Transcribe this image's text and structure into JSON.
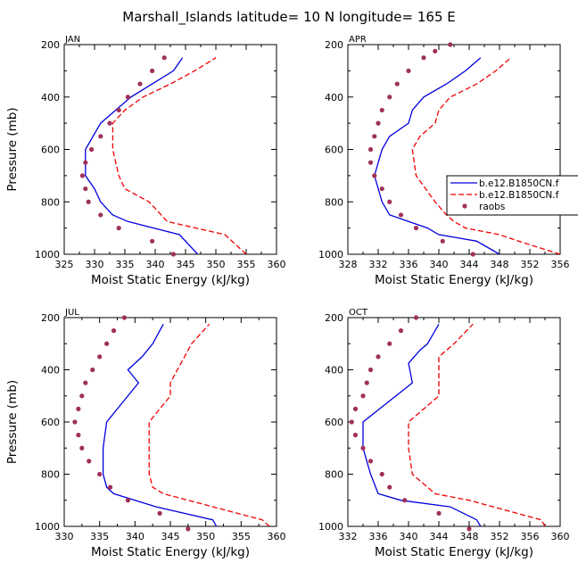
{
  "figure_title": "Marshall_Islands   latitude= 10 N longitude= 165 E",
  "colors": {
    "model1": "#0000dd",
    "model2": "#ee0000",
    "raobs": "#a0305a"
  },
  "legend": [
    "b.e12.B1850CN.f",
    "b.e12.B1850CN.f",
    "raobs"
  ],
  "chart_data": [
    {
      "type": "line",
      "panel": "JAN",
      "xlabel": "Moist Static Energy (kJ/kg)",
      "ylabel": "Pressure (mb)",
      "xlim": [
        325,
        360
      ],
      "xticks": [
        325,
        330,
        335,
        340,
        345,
        350,
        355,
        360
      ],
      "ylim": [
        1000,
        200
      ],
      "yticks": [
        200,
        400,
        600,
        800,
        1000
      ],
      "series": [
        {
          "name": "b.e12.B1850CN.f",
          "style": "solid",
          "x": [
            347.0,
            344.0,
            335.5,
            333.0,
            331.0,
            330.0,
            328.5,
            328.5,
            331.0,
            333.5,
            336.0,
            339.5,
            343.0,
            344.5
          ],
          "y": [
            1000,
            925,
            875,
            850,
            800,
            750,
            700,
            600,
            500,
            450,
            400,
            350,
            300,
            250
          ]
        },
        {
          "name": "b.e12.B1850CN.f",
          "style": "dashed",
          "x": [
            355.0,
            351.5,
            342.0,
            341.0,
            339.0,
            335.0,
            334.0,
            333.0,
            333.0,
            335.0,
            338.0,
            342.5,
            346.5,
            350.0
          ],
          "y": [
            1000,
            925,
            875,
            850,
            800,
            750,
            700,
            600,
            500,
            450,
            400,
            350,
            300,
            250
          ]
        },
        {
          "name": "raobs",
          "style": "points",
          "x": [
            343.0,
            339.5,
            334.0,
            331.0,
            329.0,
            328.5,
            328.0,
            328.5,
            329.5,
            331.0,
            332.5,
            334.0,
            335.5,
            337.5,
            339.5,
            341.5
          ],
          "y": [
            1000,
            950,
            900,
            850,
            800,
            750,
            700,
            650,
            600,
            550,
            500,
            450,
            400,
            350,
            300,
            250
          ]
        }
      ]
    },
    {
      "type": "line",
      "panel": "APR",
      "xlabel": "Moist Static Energy (kJ/kg)",
      "ylabel": "",
      "xlim": [
        328,
        356
      ],
      "xticks": [
        328,
        332,
        336,
        340,
        344,
        348,
        352,
        356
      ],
      "ylim": [
        1000,
        200
      ],
      "yticks": [
        200,
        400,
        600,
        800,
        1000
      ],
      "series": [
        {
          "name": "b.e12.B1850CN.f",
          "style": "solid",
          "x": [
            348.0,
            345.0,
            340.0,
            338.5,
            336.0,
            333.5,
            332.5,
            331.5,
            332.5,
            333.5,
            336.0,
            336.5,
            338.0,
            341.0,
            343.5,
            345.5
          ],
          "y": [
            1000,
            950,
            925,
            900,
            875,
            850,
            800,
            700,
            600,
            550,
            500,
            450,
            400,
            350,
            300,
            250
          ]
        },
        {
          "name": "b.e12.B1850CN.f",
          "style": "dashed",
          "x": [
            356.0,
            350.5,
            348.0,
            343.5,
            342.0,
            341.0,
            339.5,
            337.0,
            336.5,
            337.5,
            339.5,
            340.0,
            341.5,
            345.0,
            347.5,
            349.5
          ],
          "y": [
            1000,
            950,
            925,
            900,
            875,
            850,
            800,
            700,
            600,
            550,
            500,
            450,
            400,
            350,
            300,
            250
          ]
        },
        {
          "name": "raobs",
          "style": "points",
          "x": [
            344.5,
            340.5,
            337.0,
            335.0,
            333.5,
            332.5,
            331.5,
            331.0,
            331.0,
            331.5,
            332.0,
            332.5,
            333.5,
            334.5,
            336.0,
            338.0,
            339.5,
            341.5
          ],
          "y": [
            1000,
            950,
            900,
            850,
            800,
            750,
            700,
            650,
            600,
            550,
            500,
            450,
            400,
            350,
            300,
            250,
            225,
            200
          ]
        }
      ]
    },
    {
      "type": "line",
      "panel": "JUL",
      "xlabel": "Moist Static Energy (kJ/kg)",
      "ylabel": "Pressure (mb)",
      "xlim": [
        330,
        360
      ],
      "xticks": [
        330,
        335,
        340,
        345,
        350,
        355,
        360
      ],
      "ylim": [
        1000,
        200
      ],
      "yticks": [
        200,
        400,
        600,
        800,
        1000
      ],
      "series": [
        {
          "name": "b.e12.B1850CN.f",
          "style": "solid",
          "x": [
            351.5,
            351.0,
            343.0,
            337.0,
            336.0,
            335.5,
            335.5,
            336.0,
            340.5,
            339.0,
            341.0,
            342.5,
            344.0
          ],
          "y": [
            1000,
            975,
            925,
            875,
            850,
            800,
            700,
            600,
            450,
            400,
            350,
            300,
            225
          ]
        },
        {
          "name": "b.e12.B1850CN.f",
          "style": "dashed",
          "x": [
            359.0,
            358.0,
            344.0,
            342.5,
            342.0,
            342.0,
            345.0,
            345.0,
            346.0,
            346.5,
            348.0,
            350.5
          ],
          "y": [
            1000,
            975,
            875,
            850,
            800,
            600,
            500,
            450,
            400,
            375,
            300,
            225
          ]
        },
        {
          "name": "raobs",
          "style": "points",
          "x": [
            347.5,
            343.5,
            339.0,
            336.5,
            335.0,
            333.5,
            332.5,
            332.0,
            331.5,
            332.0,
            332.5,
            333.0,
            334.0,
            335.0,
            336.0,
            337.0,
            338.5
          ],
          "y": [
            1010,
            950,
            900,
            850,
            800,
            750,
            700,
            650,
            600,
            550,
            500,
            450,
            400,
            350,
            300,
            250,
            200
          ]
        }
      ]
    },
    {
      "type": "line",
      "panel": "OCT",
      "xlabel": "Moist Static Energy (kJ/kg)",
      "ylabel": "",
      "xlim": [
        332,
        360
      ],
      "xticks": [
        332,
        336,
        340,
        344,
        348,
        352,
        356,
        360
      ],
      "ylim": [
        1000,
        200
      ],
      "yticks": [
        200,
        400,
        600,
        800,
        1000
      ],
      "series": [
        {
          "name": "b.e12.B1850CN.f",
          "style": "solid",
          "x": [
            349.5,
            349.0,
            345.5,
            339.0,
            336.0,
            335.0,
            334.0,
            334.0,
            340.5,
            340.0,
            341.5,
            342.5,
            344.0
          ],
          "y": [
            1000,
            975,
            925,
            900,
            875,
            800,
            700,
            600,
            450,
            375,
            325,
            300,
            225
          ]
        },
        {
          "name": "b.e12.B1850CN.f",
          "style": "dashed",
          "x": [
            358.0,
            357.5,
            348.0,
            343.5,
            342.5,
            340.5,
            340.0,
            340.0,
            344.0,
            344.0,
            344.0,
            346.0,
            348.5
          ],
          "y": [
            1000,
            975,
            900,
            875,
            850,
            800,
            700,
            600,
            500,
            450,
            350,
            300,
            225
          ]
        },
        {
          "name": "raobs",
          "style": "points",
          "x": [
            348.0,
            344.0,
            339.5,
            337.5,
            336.5,
            335.0,
            334.0,
            333.0,
            332.5,
            333.0,
            334.0,
            334.5,
            335.0,
            336.0,
            337.5,
            339.0,
            341.0
          ],
          "y": [
            1010,
            950,
            900,
            850,
            800,
            750,
            700,
            650,
            600,
            550,
            500,
            450,
            400,
            350,
            300,
            250,
            200
          ]
        }
      ]
    }
  ]
}
